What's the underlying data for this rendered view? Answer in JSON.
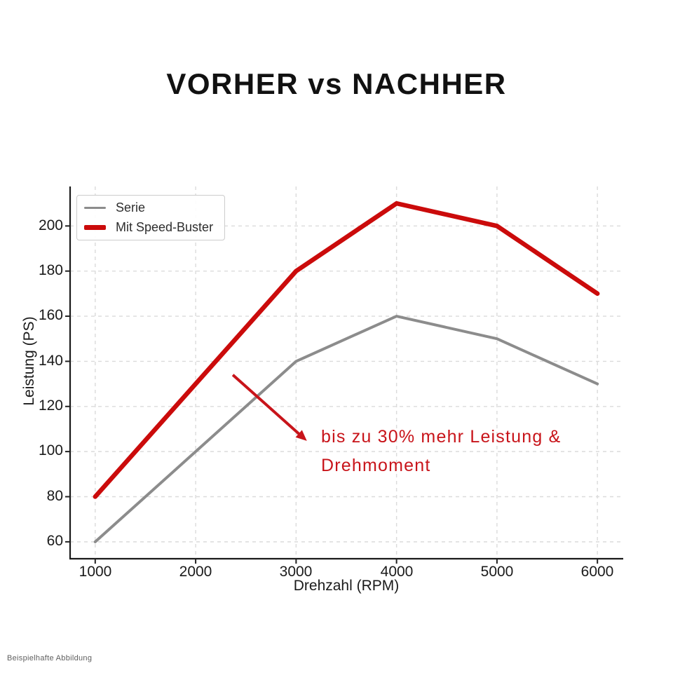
{
  "title": "VORHER vs NACHHER",
  "footer": "Beispielhafte Abbildung",
  "annotation": {
    "line1": "bis zu 30% mehr Leistung &",
    "line2": "Drehmoment"
  },
  "legend": {
    "items": [
      {
        "label": "Serie",
        "color": "#8C8C8C",
        "thickness": 3.5
      },
      {
        "label": "Mit Speed-Buster",
        "color": "#CB0B0B",
        "thickness": 6.5
      }
    ]
  },
  "colors": {
    "line_red": "#CB0B0B",
    "line_gray": "#8C8C8C",
    "annotation_red": "#C8141A",
    "grid": "#DBDBDB",
    "axis": "#1a1a1a",
    "title_text": "#111111"
  },
  "chart_data": {
    "type": "line",
    "title": "VORHER vs NACHHER",
    "xlabel": "Drehzahl (RPM)",
    "ylabel": "Leistung (PS)",
    "x": [
      1000,
      2000,
      3000,
      4000,
      5000,
      6000
    ],
    "series": [
      {
        "name": "Serie",
        "values": [
          60,
          100,
          140,
          160,
          150,
          130
        ],
        "color": "#8C8C8C",
        "width": 4
      },
      {
        "name": "Mit Speed-Buster",
        "values": [
          80,
          130,
          180,
          210,
          200,
          170
        ],
        "color": "#CB0B0B",
        "width": 6.5
      }
    ],
    "xticks": [
      1000,
      2000,
      3000,
      4000,
      5000,
      6000
    ],
    "yticks": [
      60,
      80,
      100,
      120,
      140,
      160,
      180,
      200
    ],
    "xlim": [
      750,
      6250
    ],
    "ylim": [
      52.5,
      217.5
    ],
    "grid": true,
    "grid_style": "dashed",
    "legend_position": "upper left",
    "annotation": {
      "text": "bis zu 30% mehr Leistung & Drehmoment",
      "arrow_from_xy": [
        2370,
        134
      ],
      "arrow_to_xy": [
        3050,
        107
      ]
    }
  }
}
